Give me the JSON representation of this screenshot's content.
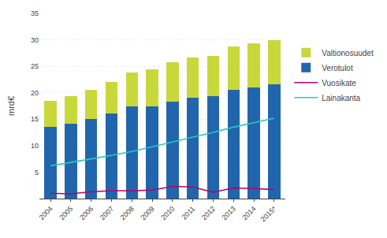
{
  "chart_data": {
    "type": "bar",
    "stacked": true,
    "categories": [
      "2004",
      "2005",
      "2006",
      "2007",
      "2008",
      "2009",
      "2010",
      "2011",
      "2012",
      "2013",
      "2014",
      "2015*"
    ],
    "series": [
      {
        "name": "Verotulot",
        "type": "bar",
        "color": "#2166ac",
        "values": [
          13.6,
          14.2,
          15.0,
          16.1,
          17.5,
          17.5,
          18.3,
          19.0,
          19.3,
          20.5,
          21.0,
          21.6
        ]
      },
      {
        "name": "Valtionosuudet",
        "type": "bar",
        "color": "#c8d83a",
        "values": [
          4.8,
          5.2,
          5.6,
          5.9,
          6.3,
          6.9,
          7.4,
          7.6,
          7.7,
          8.3,
          8.4,
          8.4
        ]
      },
      {
        "name": "Vuosikate",
        "type": "line",
        "color": "#b8006a",
        "values": [
          1.0,
          0.9,
          1.3,
          1.5,
          1.5,
          1.6,
          2.3,
          2.2,
          1.2,
          2.0,
          1.9,
          1.7
        ]
      },
      {
        "name": "Lainakanta",
        "type": "line",
        "color": "#2ec4c4",
        "values": [
          6.2,
          6.8,
          7.5,
          8.2,
          8.9,
          9.8,
          10.7,
          11.5,
          12.5,
          13.5,
          14.3,
          15.2
        ]
      }
    ],
    "ylabel": "mrd€",
    "ylim": [
      0,
      35
    ],
    "yticks": [
      5,
      10,
      15,
      20,
      25,
      30,
      35
    ],
    "grid": true,
    "legend": "right"
  }
}
